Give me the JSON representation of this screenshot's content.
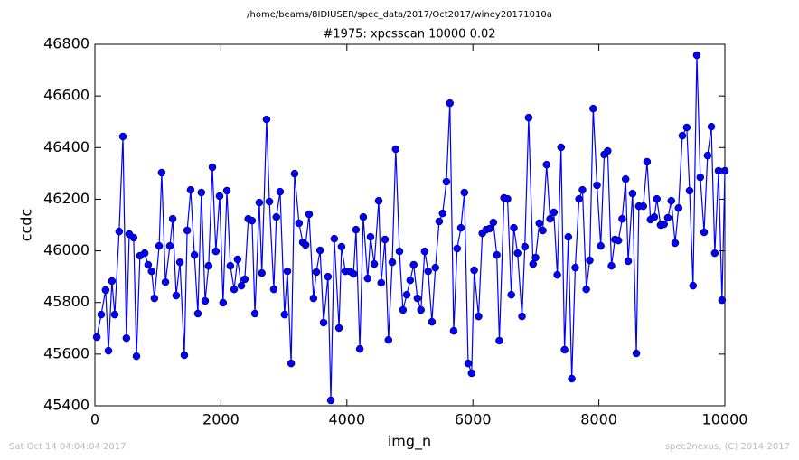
{
  "header": {
    "path": "/home/beams/8IDIUSER/spec_data/2017/Oct2017/winey20171010a"
  },
  "footer": {
    "date": "Sat Oct 14 04:04:04 2017",
    "credit": "spec2nexus, (C) 2014-2017"
  },
  "chart_data": {
    "type": "line",
    "title": "#1975: xpcsscan 10000 0.02",
    "x_label": "img_n",
    "y_label": "ccdc",
    "x": [
      30,
      100,
      170,
      215,
      270,
      315,
      385,
      445,
      500,
      545,
      615,
      660,
      715,
      790,
      845,
      900,
      945,
      1020,
      1060,
      1120,
      1190,
      1235,
      1290,
      1350,
      1420,
      1465,
      1520,
      1580,
      1635,
      1690,
      1750,
      1805,
      1865,
      1920,
      1980,
      2035,
      2095,
      2150,
      2210,
      2265,
      2325,
      2380,
      2435,
      2495,
      2540,
      2610,
      2650,
      2725,
      2770,
      2840,
      2880,
      2940,
      3010,
      3055,
      3115,
      3170,
      3240,
      3300,
      3345,
      3400,
      3470,
      3515,
      3575,
      3630,
      3700,
      3745,
      3800,
      3875,
      3915,
      3975,
      4045,
      4105,
      4145,
      4205,
      4260,
      4330,
      4375,
      4435,
      4505,
      4545,
      4605,
      4660,
      4720,
      4775,
      4835,
      4890,
      4950,
      5005,
      5060,
      5120,
      5175,
      5235,
      5290,
      5350,
      5405,
      5465,
      5520,
      5580,
      5635,
      5695,
      5750,
      5810,
      5865,
      5925,
      5980,
      6020,
      6090,
      6150,
      6210,
      6265,
      6325,
      6380,
      6420,
      6495,
      6550,
      6610,
      6650,
      6710,
      6780,
      6825,
      6885,
      6955,
      6995,
      7055,
      7110,
      7170,
      7225,
      7285,
      7340,
      7400,
      7455,
      7515,
      7570,
      7625,
      7685,
      7740,
      7800,
      7855,
      7910,
      7970,
      8030,
      8085,
      8140,
      8200,
      8255,
      8310,
      8370,
      8425,
      8465,
      8535,
      8595,
      8635,
      8705,
      8765,
      8820,
      8880,
      8920,
      8980,
      9035,
      9095,
      9150,
      9210,
      9265,
      9325,
      9395,
      9440,
      9495,
      9555,
      9610,
      9670,
      9725,
      9785,
      9840,
      9900,
      9955,
      10000
    ],
    "series": [
      {
        "name": "ccdc",
        "color": "#0000ff",
        "values": [
          45666,
          45753,
          45848,
          45613,
          45883,
          45753,
          46075,
          46443,
          45662,
          46065,
          46051,
          45592,
          45981,
          45991,
          45946,
          45921,
          45816,
          46019,
          46303,
          45879,
          46019,
          46124,
          45827,
          45956,
          45596,
          46079,
          46236,
          45984,
          45757,
          46226,
          45806,
          45942,
          46324,
          45998,
          46212,
          45799,
          46233,
          45942,
          45851,
          45967,
          45865,
          45890,
          46124,
          46117,
          45757,
          46187,
          45914,
          46509,
          46191,
          45851,
          46131,
          46229,
          45753,
          45921,
          45564,
          46299,
          46107,
          46033,
          46023,
          46142,
          45816,
          45918,
          46002,
          45722,
          45900,
          45421,
          46047,
          45701,
          46016,
          45921,
          45921,
          45911,
          46082,
          45620,
          46131,
          45893,
          46054,
          45949,
          46194,
          45876,
          46044,
          45655,
          45956,
          46394,
          45998,
          45771,
          45830,
          45886,
          45946,
          45816,
          45771,
          45998,
          45921,
          45725,
          45935,
          46114,
          46145,
          46268,
          46572,
          45690,
          46009,
          46089,
          46226,
          45564,
          45526,
          45925,
          45746,
          46068,
          46082,
          46086,
          46110,
          45984,
          45652,
          46205,
          46201,
          45830,
          46089,
          45991,
          45746,
          46016,
          46516,
          45949,
          45974,
          46107,
          46079,
          46334,
          46124,
          46149,
          45907,
          46401,
          45617,
          46054,
          45505,
          45935,
          46201,
          46236,
          45851,
          45963,
          46551,
          46254,
          46019,
          46373,
          46387,
          45942,
          46044,
          46040,
          46124,
          46278,
          45960,
          46222,
          45603,
          46173,
          46173,
          46345,
          46121,
          46131,
          46201,
          46100,
          46103,
          46128,
          46194,
          46030,
          46166,
          46446,
          46478,
          46233,
          45865,
          46758,
          46285,
          46072,
          46369,
          46481,
          45991,
          46310,
          45809,
          46310
        ]
      }
    ],
    "xlim": [
      0,
      10000
    ],
    "xticks": [
      0,
      2000,
      4000,
      6000,
      8000,
      10000
    ],
    "ylim": [
      45400,
      46800
    ],
    "yticks": [
      45400,
      45600,
      45800,
      46000,
      46200,
      46400,
      46600,
      46800
    ]
  }
}
